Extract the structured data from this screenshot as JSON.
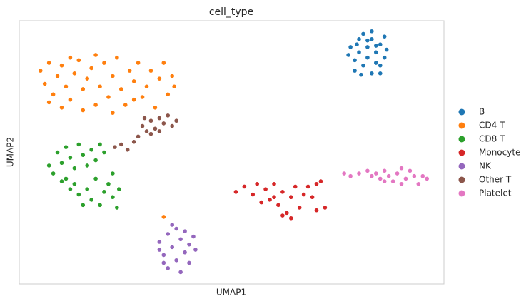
{
  "chart_data": {
    "type": "scatter",
    "title": "cell_type",
    "x_label": "UMAP1",
    "y_label": "UMAP2",
    "xlim": [
      0,
      100
    ],
    "ylim": [
      0,
      100
    ],
    "grid": false,
    "legend": "right",
    "series": [
      {
        "name": "B",
        "color": "#1f77b4",
        "x": [
          78,
          79,
          80,
          80,
          81,
          81,
          82,
          82,
          83,
          83,
          84,
          84,
          85,
          85,
          86,
          86,
          79,
          77.5,
          83,
          85,
          86.5,
          80.5,
          82,
          84,
          79.5
        ],
        "y": [
          90,
          85,
          93,
          88,
          83,
          95,
          90,
          86,
          80,
          93,
          88,
          84,
          91,
          80,
          86,
          94,
          81,
          87,
          96,
          83,
          89,
          79.5,
          92.5,
          90.5,
          91
        ]
      },
      {
        "name": "CD4 T",
        "color": "#ff7f0e",
        "x": [
          5,
          6,
          7,
          8,
          9,
          10,
          10,
          11,
          12,
          13,
          14,
          15,
          15,
          16,
          17,
          18,
          19,
          20,
          21,
          22,
          22,
          23,
          24,
          25,
          26,
          27,
          28,
          29,
          30,
          31,
          32,
          33,
          34,
          35,
          36,
          36.5,
          12,
          18,
          7,
          27,
          34
        ],
        "y": [
          81,
          76,
          84,
          72,
          79,
          67,
          83,
          75,
          70,
          80,
          85,
          66,
          74,
          78,
          82,
          68,
          75,
          84,
          71,
          65,
          79,
          86,
          74,
          68,
          81,
          77,
          84,
          71,
          75,
          81,
          67,
          78,
          84,
          72,
          79,
          75,
          86,
          87,
          69,
          70,
          25.5
        ]
      },
      {
        "name": "CD8 T",
        "color": "#2ca02c",
        "x": [
          7,
          8,
          9,
          10,
          11,
          11,
          12,
          13,
          14,
          15,
          16,
          17,
          18,
          19,
          20,
          13,
          14,
          16,
          17,
          18,
          19,
          20,
          21,
          22,
          23,
          23.5,
          22,
          12,
          10,
          15
        ],
        "y": [
          45,
          42,
          50,
          46,
          52,
          40,
          48,
          44,
          53,
          49,
          45,
          51,
          47,
          53,
          50,
          38,
          34,
          36,
          32,
          40,
          30,
          35,
          38,
          33,
          29,
          36,
          42,
          36,
          39,
          30
        ]
      },
      {
        "name": "Monocyte",
        "color": "#d62728",
        "x": [
          51,
          53,
          55,
          56,
          58,
          59,
          60,
          61,
          62,
          63,
          64,
          65,
          66,
          67,
          68,
          69,
          70,
          71,
          72,
          62,
          60,
          57,
          64,
          70
        ],
        "y": [
          35,
          37,
          34,
          38,
          36,
          32,
          38,
          30,
          35,
          27,
          33,
          37,
          29,
          34,
          37,
          33,
          38,
          39,
          29,
          26,
          33,
          31,
          25,
          28
        ]
      },
      {
        "name": "NK",
        "color": "#9467bd",
        "x": [
          33,
          34,
          35,
          35,
          36,
          37,
          37,
          38,
          38,
          39,
          39,
          40,
          40,
          41,
          41.5,
          36,
          34,
          33
        ],
        "y": [
          16,
          11,
          19,
          6,
          14,
          21,
          9,
          17,
          4.5,
          12,
          20,
          15,
          8,
          18,
          13,
          22.5,
          8,
          13
        ]
      },
      {
        "name": "Other T",
        "color": "#8c564b",
        "x": [
          22.5,
          24,
          25.5,
          27,
          28,
          29,
          30,
          31,
          32,
          33,
          34,
          35,
          36,
          37,
          33,
          31,
          29.5
        ],
        "y": [
          52,
          53,
          51,
          54,
          56,
          60,
          58,
          62,
          59,
          63,
          61,
          64,
          60,
          62,
          58,
          57,
          63
        ]
      },
      {
        "name": "Platelet",
        "color": "#e377c2",
        "x": [
          76.5,
          78,
          80,
          82,
          83,
          84,
          85,
          86,
          87,
          88,
          89,
          90,
          91,
          92,
          93,
          94,
          95,
          96,
          90,
          86
        ],
        "y": [
          42,
          41,
          42,
          43,
          41,
          42,
          40,
          43,
          41,
          39,
          42,
          44,
          40,
          43,
          41,
          38,
          41,
          40,
          38,
          39
        ]
      }
    ]
  }
}
